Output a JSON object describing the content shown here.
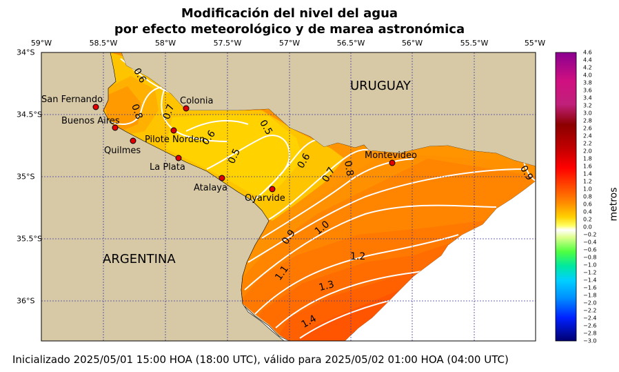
{
  "title": {
    "line1": "Modificación del nivel del agua",
    "line2": "por efecto meteorológico y de marea astronómica"
  },
  "lon_ticks": [
    "59°W",
    "58.5°W",
    "58°W",
    "57.5°W",
    "57°W",
    "56.5°W",
    "56°W",
    "55.5°W",
    "55°W"
  ],
  "lat_ticks": [
    "34°S",
    "34.5°S",
    "35°S",
    "35.5°S",
    "36°S"
  ],
  "countries": {
    "uruguay": "URUGUAY",
    "argentina": "ARGENTINA"
  },
  "places": [
    {
      "name": "San Fernando"
    },
    {
      "name": "Buenos Aires"
    },
    {
      "name": "Quilmes"
    },
    {
      "name": "Pilote Norden"
    },
    {
      "name": "La Plata"
    },
    {
      "name": "Colonia"
    },
    {
      "name": "Atalaya"
    },
    {
      "name": "Oyarvide"
    },
    {
      "name": "Montevideo"
    }
  ],
  "contour_labels": [
    "0.6",
    "0.8",
    "0.7",
    "0.6",
    "0.5",
    "0.5",
    "0.6",
    "0.7",
    "0.8",
    "0.9",
    "1.0",
    "1.1",
    "1.2",
    "1.3",
    "1.4",
    "0.9"
  ],
  "colorbar": {
    "label": "metros",
    "ticks": [
      "4.6",
      "4.4",
      "4.2",
      "4.0",
      "3.8",
      "3.6",
      "3.4",
      "3.2",
      "3.0",
      "2.8",
      "2.6",
      "2.4",
      "2.2",
      "2.0",
      "1.8",
      "1.6",
      "1.4",
      "1.2",
      "1.0",
      "0.8",
      "0.6",
      "0.4",
      "0.2",
      "0.0",
      "−0.2",
      "−0.4",
      "−0.6",
      "−0.8",
      "−1.0",
      "−1.2",
      "−1.4",
      "−1.6",
      "−1.8",
      "−2.0",
      "−2.2",
      "−2.4",
      "−2.6",
      "−2.8",
      "−3.0"
    ]
  },
  "colors": {
    "land": "#d8c9a6",
    "ocean": "#ffffff",
    "yellow": "#ffd000",
    "orange1": "#ff9d00",
    "orange2": "#ff8000",
    "orange3": "#ff6a00",
    "orange4": "#ff5200"
  },
  "footer": "Inicializado 2025/05/01 15:00 HOA (18:00 UTC), válido para 2025/05/02 01:00 HOA (04:00 UTC)"
}
